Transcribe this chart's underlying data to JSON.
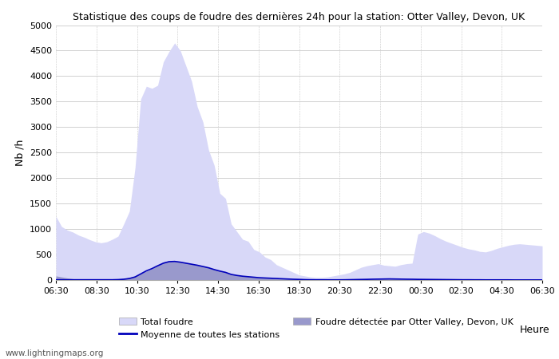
{
  "title": "Statistique des coups de foudre des dernières 24h pour la station: Otter Valley, Devon, UK",
  "xlabel": "Heure",
  "ylabel": "Nb /h",
  "ylim": [
    0,
    5000
  ],
  "yticks": [
    0,
    500,
    1000,
    1500,
    2000,
    2500,
    3000,
    3500,
    4000,
    4500,
    5000
  ],
  "xtick_labels": [
    "06:30",
    "08:30",
    "10:30",
    "12:30",
    "14:30",
    "16:30",
    "18:30",
    "20:30",
    "22:30",
    "00:30",
    "02:30",
    "04:30",
    "06:30"
  ],
  "watermark": "www.lightningmaps.org",
  "bg_color": "#ffffff",
  "grid_color": "#d0d0d0",
  "total_fill_color": "#d8d8f8",
  "local_fill_color": "#9999cc",
  "avg_line_color": "#0000bb",
  "total_foudre": [
    1250,
    1050,
    980,
    940,
    880,
    840,
    790,
    750,
    730,
    750,
    800,
    860,
    1100,
    1350,
    2200,
    3550,
    3800,
    3760,
    3820,
    4280,
    4480,
    4650,
    4500,
    4200,
    3900,
    3400,
    3100,
    2550,
    2250,
    1700,
    1600,
    1100,
    950,
    800,
    760,
    600,
    550,
    450,
    400,
    300,
    250,
    200,
    150,
    100,
    80,
    60,
    50,
    50,
    60,
    80,
    100,
    120,
    150,
    200,
    250,
    280,
    300,
    320,
    290,
    280,
    270,
    300,
    320,
    330,
    900,
    950,
    920,
    870,
    810,
    760,
    720,
    680,
    640,
    610,
    590,
    560,
    550,
    580,
    620,
    650,
    680,
    700,
    710,
    700,
    690,
    680,
    670
  ],
  "local_detected": [
    80,
    60,
    40,
    25,
    15,
    10,
    6,
    5,
    4,
    5,
    8,
    15,
    30,
    50,
    80,
    130,
    175,
    220,
    285,
    355,
    370,
    370,
    355,
    340,
    320,
    300,
    275,
    250,
    215,
    185,
    160,
    120,
    100,
    85,
    75,
    60,
    50,
    45,
    40,
    35,
    30,
    25,
    20,
    15,
    10,
    8,
    6,
    5,
    4,
    4,
    5,
    6,
    8,
    10,
    12,
    15,
    18,
    20,
    22,
    24,
    22,
    20,
    18,
    17,
    15,
    13,
    12,
    11,
    10,
    9,
    8,
    7,
    6,
    5,
    4,
    4,
    4,
    3,
    3,
    3,
    3,
    2,
    2,
    2,
    2,
    2,
    2
  ],
  "avg_line": [
    5,
    5,
    5,
    5,
    5,
    5,
    5,
    5,
    5,
    5,
    5,
    8,
    15,
    30,
    60,
    120,
    180,
    225,
    280,
    330,
    360,
    365,
    350,
    330,
    310,
    290,
    265,
    240,
    205,
    175,
    150,
    110,
    90,
    75,
    65,
    55,
    45,
    40,
    35,
    30,
    25,
    20,
    15,
    12,
    8,
    6,
    5,
    5,
    4,
    4,
    4,
    5,
    7,
    9,
    11,
    13,
    16,
    18,
    20,
    22,
    20,
    18,
    16,
    15,
    13,
    12,
    11,
    10,
    9,
    8,
    7,
    6,
    5,
    5,
    4,
    4,
    3,
    3,
    3,
    3,
    3,
    2,
    2,
    2,
    2,
    2,
    2
  ]
}
